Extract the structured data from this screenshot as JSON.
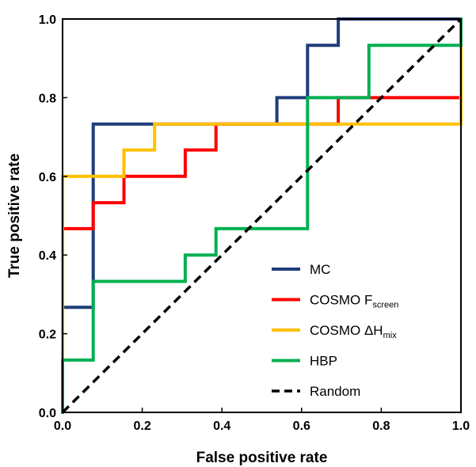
{
  "chart_data": {
    "type": "line",
    "xlabel": "False positive rate",
    "ylabel": "True positive rate",
    "xlim": [
      0,
      1
    ],
    "ylim": [
      0,
      1
    ],
    "x_ticks": [
      "0.0",
      "0.2",
      "0.4",
      "0.6",
      "0.8",
      "1.0"
    ],
    "y_ticks": [
      "0.0",
      "0.2",
      "0.4",
      "0.6",
      "0.8",
      "1.0"
    ],
    "grid": false,
    "legend_position": "bottom-right",
    "series": [
      {
        "name": "MC",
        "color": "#1f3d7a",
        "dash": false,
        "x": [
          0,
          0,
          0.077,
          0.077,
          0.538,
          0.538,
          0.615,
          0.615,
          0.692,
          0.692,
          1
        ],
        "y": [
          0,
          0.267,
          0.267,
          0.733,
          0.733,
          0.8,
          0.8,
          0.933,
          0.933,
          1.0,
          1.0
        ]
      },
      {
        "name": "COSMO F",
        "subscript": "screen",
        "color": "#ff0000",
        "dash": false,
        "x": [
          0,
          0,
          0.077,
          0.077,
          0.154,
          0.154,
          0.308,
          0.308,
          0.385,
          0.385,
          0.692,
          0.692,
          1.0,
          1.0
        ],
        "y": [
          0,
          0.467,
          0.467,
          0.533,
          0.533,
          0.6,
          0.6,
          0.667,
          0.667,
          0.733,
          0.733,
          0.8,
          0.8,
          1.0
        ]
      },
      {
        "name": "COSMO ΔH",
        "subscript": "mix",
        "color": "#ffc000",
        "dash": false,
        "x": [
          0,
          0,
          0.077,
          0.077,
          0.154,
          0.154,
          0.231,
          0.231,
          1.0,
          1.0
        ],
        "y": [
          0,
          0.6,
          0.6,
          0.6,
          0.6,
          0.667,
          0.667,
          0.733,
          0.733,
          1.0
        ]
      },
      {
        "name": "HBP",
        "color": "#00b050",
        "dash": false,
        "x": [
          0,
          0,
          0.077,
          0.077,
          0.308,
          0.308,
          0.385,
          0.385,
          0.615,
          0.615,
          0.769,
          0.769,
          1.0,
          1.0
        ],
        "y": [
          0,
          0.133,
          0.133,
          0.333,
          0.333,
          0.4,
          0.4,
          0.467,
          0.467,
          0.8,
          0.8,
          0.933,
          0.933,
          1.0
        ]
      },
      {
        "name": "Random",
        "color": "#000000",
        "dash": true,
        "x": [
          0,
          1
        ],
        "y": [
          0,
          1
        ]
      }
    ]
  }
}
